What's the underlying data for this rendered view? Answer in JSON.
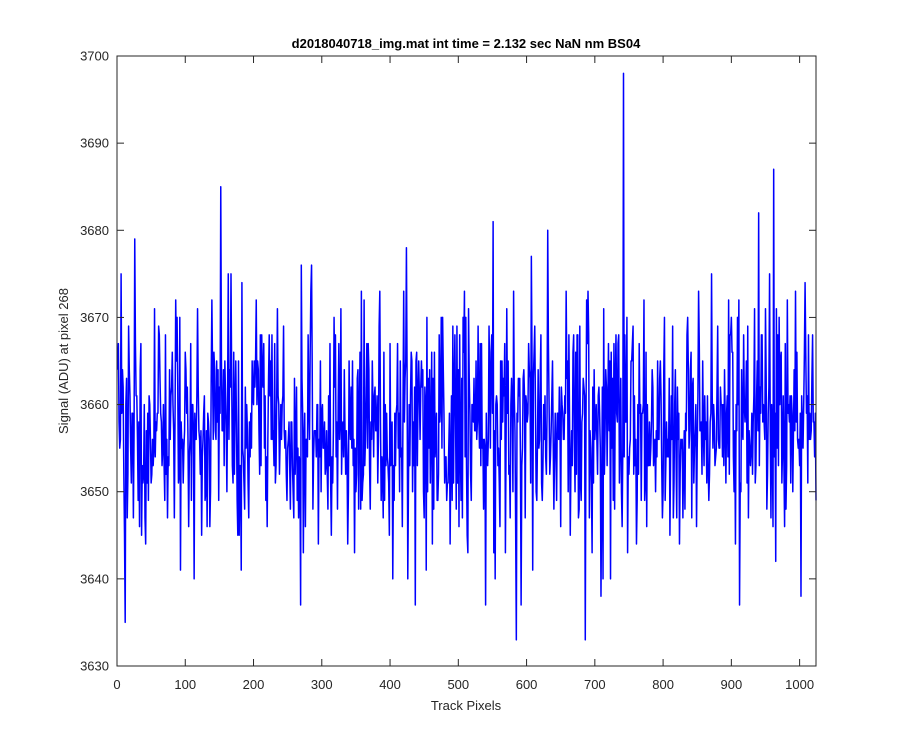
{
  "chart_data": {
    "type": "line",
    "title": "d2018040718_img.mat int time = 2.132 sec  NaN nm BS04",
    "xlabel": "Track Pixels",
    "ylabel": "Signal (ADU) at pixel 268",
    "xlim": [
      0,
      1024
    ],
    "ylim": [
      3630,
      3700
    ],
    "xticks": [
      0,
      100,
      200,
      300,
      400,
      500,
      600,
      700,
      800,
      900,
      1000
    ],
    "yticks": [
      3630,
      3640,
      3650,
      3660,
      3670,
      3680,
      3690,
      3700
    ],
    "grid": false,
    "series": [
      {
        "color": "#0000ff",
        "x_start": 1,
        "x_step": 1,
        "count": 1024,
        "baseline": 3658,
        "noise_sd": 7,
        "range": [
          3633,
          3698
        ],
        "spikes": [
          {
            "x": 12,
            "y": 3635
          },
          {
            "x": 152,
            "y": 3685
          },
          {
            "x": 183,
            "y": 3674
          },
          {
            "x": 269,
            "y": 3637
          },
          {
            "x": 424,
            "y": 3678
          },
          {
            "x": 437,
            "y": 3637
          },
          {
            "x": 540,
            "y": 3637
          },
          {
            "x": 551,
            "y": 3681
          },
          {
            "x": 585,
            "y": 3633
          },
          {
            "x": 592,
            "y": 3637
          },
          {
            "x": 631,
            "y": 3680
          },
          {
            "x": 686,
            "y": 3633
          },
          {
            "x": 742,
            "y": 3698
          },
          {
            "x": 962,
            "y": 3687
          },
          {
            "x": 1002,
            "y": 3638
          },
          {
            "x": 1008,
            "y": 3674
          }
        ]
      }
    ]
  }
}
